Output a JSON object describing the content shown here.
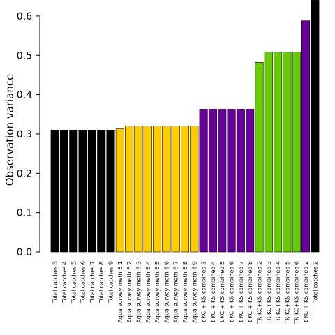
{
  "chart_data": {
    "type": "bar",
    "title": "",
    "xlabel": "",
    "ylabel": "Observation variance",
    "ylim": [
      0,
      0.63
    ],
    "yticks": [
      "0.0",
      "0.1",
      "0.2",
      "0.3",
      "0.4",
      "0.5",
      "0.6"
    ],
    "grid": false,
    "categories": [
      "Total catches 3",
      "Total catches 4",
      "Total catches 5",
      "Total catches 6",
      "Total catches 7",
      "Total catches 8",
      "Total catches 9",
      "Aqua survey meth 6 1",
      "Aqua survey meth 6 2",
      "Aqua survey meth 6 3",
      "Aqua survey meth 6 4",
      "Aqua survey meth 6 5",
      "Aqua survey meth 6 6",
      "Aqua survey meth 6 7",
      "Aqua survey meth 6 8",
      "Aqua survey meth 6 9",
      "t KC + KS combined 3",
      "t KC + KS combined 4",
      "t KC + KS combined 5",
      "t KC + KS combined 6",
      "t KC + KS combined 7",
      "t KC + KS combined 8",
      "TR KC+KS combined 2",
      "TR KC+KS combined 3",
      "TR KC+KS combined 4",
      "TR KC+KS combined 5",
      "TR KC+KS combined 6",
      "t KC + KS combined 2",
      "Total catches 2"
    ],
    "values": [
      0.31,
      0.31,
      0.31,
      0.31,
      0.31,
      0.31,
      0.31,
      0.313,
      0.32,
      0.32,
      0.32,
      0.32,
      0.32,
      0.32,
      0.32,
      0.32,
      0.363,
      0.363,
      0.363,
      0.363,
      0.363,
      0.363,
      0.482,
      0.508,
      0.508,
      0.508,
      0.508,
      0.588,
      0.64
    ],
    "colors": [
      "#000000",
      "#000000",
      "#000000",
      "#000000",
      "#000000",
      "#000000",
      "#000000",
      "#FFCC00",
      "#FFCC00",
      "#FFCC00",
      "#FFCC00",
      "#FFCC00",
      "#FFCC00",
      "#FFCC00",
      "#FFCC00",
      "#FFCC00",
      "#660099",
      "#660099",
      "#660099",
      "#660099",
      "#660099",
      "#660099",
      "#66CC00",
      "#66CC00",
      "#66CC00",
      "#66CC00",
      "#66CC00",
      "#660099",
      "#000000"
    ]
  }
}
